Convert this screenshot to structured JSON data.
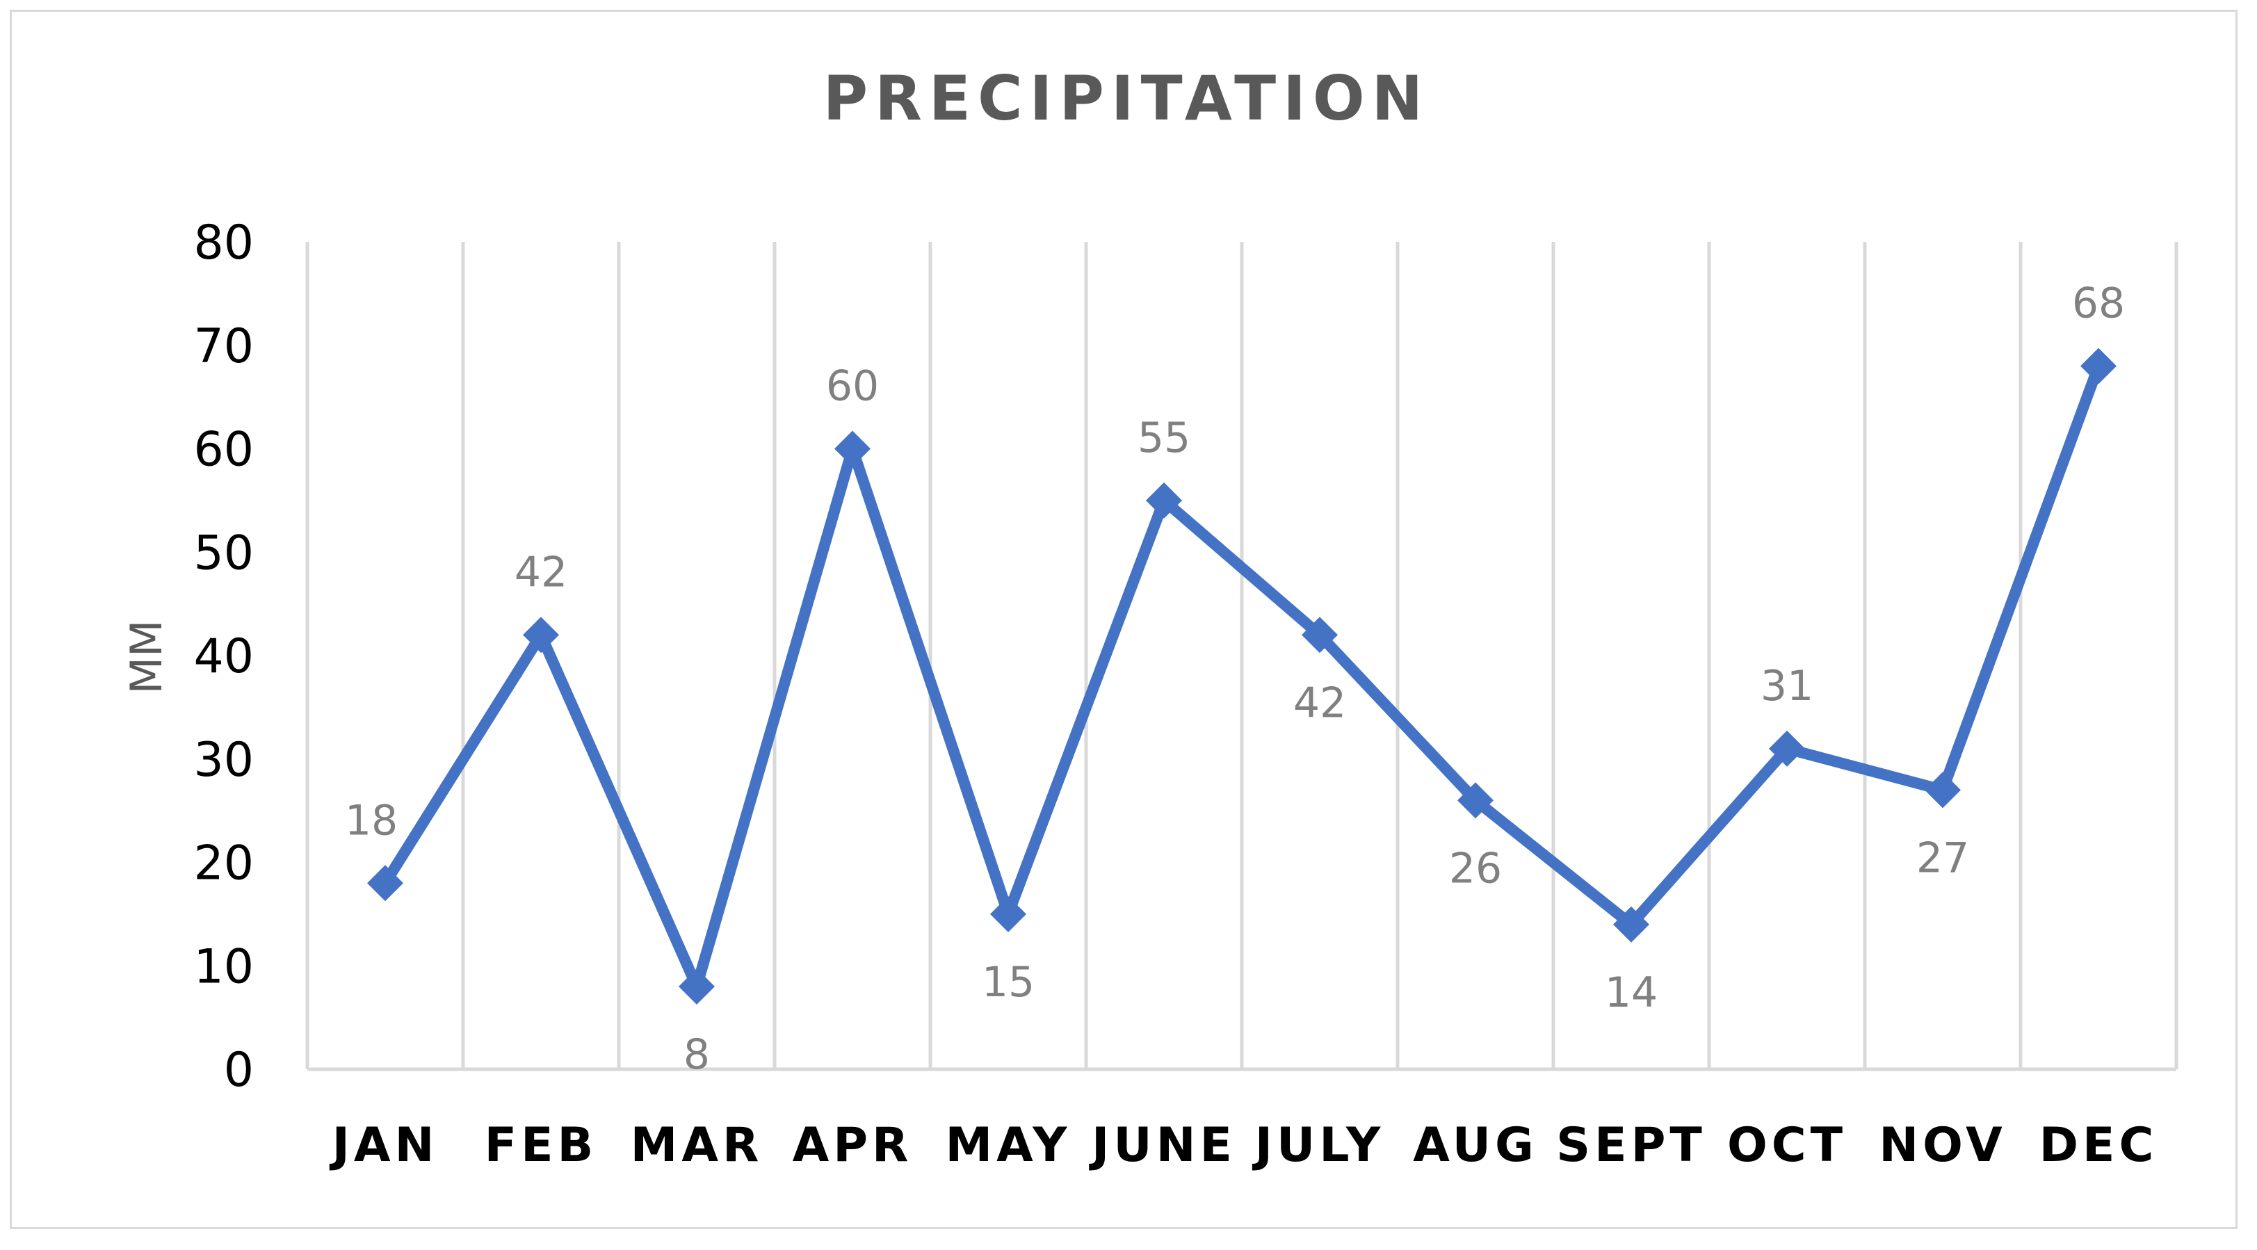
{
  "chart_data": {
    "type": "line",
    "title": "PRECIPITATION",
    "xlabel": "",
    "ylabel": "MM",
    "categories": [
      "JAN",
      "FEB",
      "MAR",
      "APR",
      "MAY",
      "JUNE",
      "JULY",
      "AUG",
      "SEPT",
      "OCT",
      "NOV",
      "DEC"
    ],
    "values": [
      18,
      42,
      8,
      60,
      15,
      55,
      42,
      26,
      14,
      31,
      27,
      68
    ],
    "ylim": [
      0,
      80
    ],
    "yticks": [
      0,
      10,
      20,
      30,
      40,
      50,
      60,
      70,
      80
    ],
    "grid": "vertical",
    "legend": "none",
    "marker": "diamond",
    "data_labels": true,
    "line_color": "#4472c4"
  }
}
